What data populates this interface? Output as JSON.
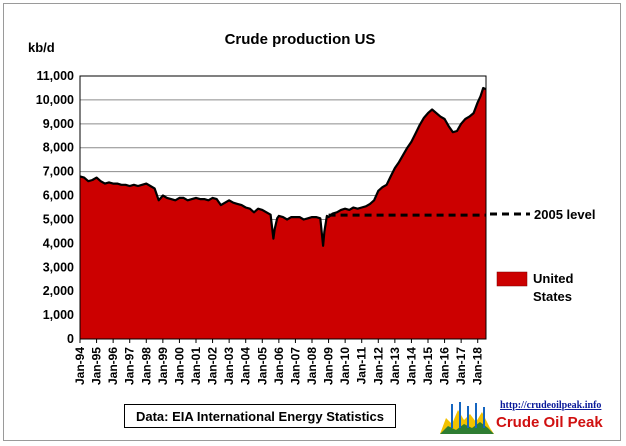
{
  "chart_data": {
    "type": "area",
    "title": "Crude  production US",
    "ylabel": "kb/d",
    "ylim": [
      0,
      11000
    ],
    "yticks": [
      "0",
      "1,000",
      "2,000",
      "3,000",
      "4,000",
      "5,000",
      "6,000",
      "7,000",
      "8,000",
      "9,000",
      "10,000",
      "11,000"
    ],
    "xticks": [
      "Jan-94",
      "Jan-95",
      "Jan-96",
      "Jan-97",
      "Jan-98",
      "Jan-99",
      "Jan-00",
      "Jan-01",
      "Jan-02",
      "Jan-03",
      "Jan-04",
      "Jan-05",
      "Jan-06",
      "Jan-07",
      "Jan-08",
      "Jan-09",
      "Jan-10",
      "Jan-11",
      "Jan-12",
      "Jan-13",
      "Jan-14",
      "Jan-15",
      "Jan-16",
      "Jan-17",
      "Jan-18"
    ],
    "x_range": [
      1994.0,
      2018.5
    ],
    "grid": true,
    "legend_placement": "right",
    "series": [
      {
        "name": "United States",
        "kind": "area",
        "color": "#cc0000",
        "outline": "#000000",
        "x": [
          1994.0,
          1994.25,
          1994.5,
          1994.75,
          1995.0,
          1995.25,
          1995.5,
          1995.75,
          1996.0,
          1996.25,
          1996.5,
          1996.75,
          1997.0,
          1997.25,
          1997.5,
          1997.75,
          1998.0,
          1998.25,
          1998.5,
          1998.75,
          1999.0,
          1999.25,
          1999.5,
          1999.75,
          2000.0,
          2000.25,
          2000.5,
          2000.75,
          2001.0,
          2001.25,
          2001.5,
          2001.75,
          2002.0,
          2002.25,
          2002.5,
          2002.75,
          2003.0,
          2003.25,
          2003.5,
          2003.75,
          2004.0,
          2004.25,
          2004.5,
          2004.75,
          2005.0,
          2005.25,
          2005.5,
          2005.67,
          2005.75,
          2005.9,
          2006.0,
          2006.25,
          2006.5,
          2006.75,
          2007.0,
          2007.25,
          2007.5,
          2007.75,
          2008.0,
          2008.25,
          2008.5,
          2008.67,
          2008.75,
          2008.9,
          2009.0,
          2009.25,
          2009.5,
          2009.75,
          2010.0,
          2010.25,
          2010.5,
          2010.75,
          2011.0,
          2011.25,
          2011.5,
          2011.75,
          2012.0,
          2012.25,
          2012.5,
          2012.75,
          2013.0,
          2013.25,
          2013.5,
          2013.75,
          2014.0,
          2014.25,
          2014.5,
          2014.75,
          2015.0,
          2015.25,
          2015.5,
          2015.75,
          2016.0,
          2016.25,
          2016.5,
          2016.75,
          2017.0,
          2017.25,
          2017.5,
          2017.75,
          2018.0,
          2018.17,
          2018.33,
          2018.5
        ],
        "values": [
          6800,
          6750,
          6600,
          6650,
          6750,
          6600,
          6500,
          6550,
          6500,
          6500,
          6450,
          6450,
          6400,
          6450,
          6400,
          6450,
          6500,
          6400,
          6300,
          5800,
          6000,
          5900,
          5850,
          5800,
          5900,
          5900,
          5800,
          5850,
          5900,
          5850,
          5850,
          5800,
          5900,
          5850,
          5600,
          5700,
          5800,
          5700,
          5650,
          5600,
          5500,
          5450,
          5300,
          5450,
          5400,
          5300,
          5200,
          4200,
          4600,
          5050,
          5150,
          5100,
          5000,
          5100,
          5100,
          5100,
          5000,
          5050,
          5100,
          5100,
          5050,
          3900,
          4500,
          5150,
          5100,
          5250,
          5300,
          5400,
          5450,
          5400,
          5500,
          5450,
          5500,
          5550,
          5650,
          5800,
          6200,
          6350,
          6450,
          6800,
          7150,
          7400,
          7700,
          8000,
          8250,
          8600,
          8950,
          9250,
          9450,
          9600,
          9450,
          9300,
          9200,
          8900,
          8650,
          8700,
          9000,
          9200,
          9300,
          9450,
          9900,
          10150,
          10500,
          10450
        ]
      },
      {
        "name": "2005 level",
        "kind": "dashed-line",
        "color": "#000000",
        "x": [
          2009.0,
          2018.5
        ],
        "values": [
          5180,
          5180
        ]
      }
    ]
  },
  "source_note": "Data: EIA International Energy Statistics",
  "logo": {
    "url": "http://crudeoilpeak.info",
    "name": "Crude Oil Peak"
  }
}
